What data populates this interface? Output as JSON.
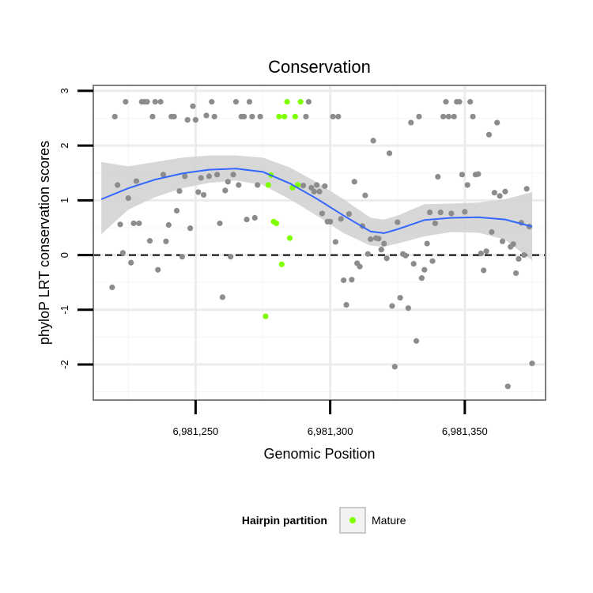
{
  "chart_data": {
    "type": "scatter",
    "title": "Conservation",
    "xlabel": "Genomic Position",
    "ylabel": "phyloP LRT conservation scores",
    "xlim": [
      6981212,
      6981380
    ],
    "ylim": [
      -2.65,
      3.1
    ],
    "x_ticks": [
      {
        "value": 6981250,
        "label": "6,981,250"
      },
      {
        "value": 6981300,
        "label": "6,981,300"
      },
      {
        "value": 6981350,
        "label": "6,981,350"
      }
    ],
    "y_ticks": [
      {
        "value": -2,
        "label": "-2"
      },
      {
        "value": -1,
        "label": "-1"
      },
      {
        "value": 0,
        "label": "0"
      },
      {
        "value": 1,
        "label": "1"
      },
      {
        "value": 2,
        "label": "2"
      },
      {
        "value": 3,
        "label": "3"
      }
    ],
    "reference_line": {
      "y": 0,
      "style": "dashed"
    },
    "grid": true,
    "legend": {
      "title": "Hairpin partition",
      "position": "bottom",
      "entries": [
        {
          "label": "Mature",
          "color": "#7fff00"
        }
      ]
    },
    "colors": {
      "points": "#8c8c8c",
      "mature": "#7fff00",
      "smooth": "#3366ff",
      "ribbon": "#d3d3d3"
    },
    "points": [
      [
        6981219,
        -0.59
      ],
      [
        6981220,
        2.53
      ],
      [
        6981221,
        1.28
      ],
      [
        6981222,
        0.56
      ],
      [
        6981223,
        0.04
      ],
      [
        6981224,
        2.8
      ],
      [
        6981225,
        1.04
      ],
      [
        6981226,
        -0.14
      ],
      [
        6981227,
        0.58
      ],
      [
        6981228,
        1.35
      ],
      [
        6981229,
        0.58
      ],
      [
        6981230,
        2.8
      ],
      [
        6981231,
        2.8
      ],
      [
        6981232,
        2.8
      ],
      [
        6981233,
        0.26
      ],
      [
        6981234,
        2.53
      ],
      [
        6981235,
        2.8
      ],
      [
        6981236,
        -0.27
      ],
      [
        6981237,
        2.8
      ],
      [
        6981238,
        1.47
      ],
      [
        6981239,
        0.25
      ],
      [
        6981240,
        0.55
      ],
      [
        6981241,
        2.53
      ],
      [
        6981242,
        2.53
      ],
      [
        6981243,
        0.81
      ],
      [
        6981244,
        1.17
      ],
      [
        6981245,
        -0.03
      ],
      [
        6981246,
        1.44
      ],
      [
        6981247,
        2.47
      ],
      [
        6981248,
        0.49
      ],
      [
        6981249,
        2.72
      ],
      [
        6981250,
        2.47
      ],
      [
        6981251,
        1.15
      ],
      [
        6981252,
        1.41
      ],
      [
        6981253,
        1.1
      ],
      [
        6981254,
        2.55
      ],
      [
        6981255,
        1.44
      ],
      [
        6981256,
        2.8
      ],
      [
        6981257,
        2.53
      ],
      [
        6981258,
        1.47
      ],
      [
        6981259,
        0.58
      ],
      [
        6981260,
        -0.77
      ],
      [
        6981261,
        1.18
      ],
      [
        6981262,
        1.34
      ],
      [
        6981263,
        -0.03
      ],
      [
        6981264,
        1.47
      ],
      [
        6981265,
        2.8
      ],
      [
        6981266,
        1.28
      ],
      [
        6981267,
        2.53
      ],
      [
        6981268,
        2.53
      ],
      [
        6981269,
        0.65
      ],
      [
        6981270,
        2.8
      ],
      [
        6981271,
        2.53
      ],
      [
        6981272,
        0.68
      ],
      [
        6981273,
        1.28
      ],
      [
        6981274,
        2.53
      ],
      [
        6981300,
        0.61
      ],
      [
        6981301,
        2.53
      ],
      [
        6981302,
        0.24
      ],
      [
        6981303,
        2.53
      ],
      [
        6981304,
        0.66
      ],
      [
        6981305,
        -0.46
      ],
      [
        6981306,
        -0.91
      ],
      [
        6981307,
        0.75
      ],
      [
        6981308,
        -0.45
      ],
      [
        6981309,
        1.34
      ],
      [
        6981310,
        -0.15
      ],
      [
        6981311,
        -0.21
      ],
      [
        6981312,
        0.53
      ],
      [
        6981313,
        1.09
      ],
      [
        6981314,
        0.02
      ],
      [
        6981315,
        0.29
      ],
      [
        6981316,
        2.09
      ],
      [
        6981317,
        0.31
      ],
      [
        6981318,
        0.3
      ],
      [
        6981319,
        0.1
      ],
      [
        6981320,
        0.21
      ],
      [
        6981321,
        -0.06
      ],
      [
        6981322,
        1.86
      ],
      [
        6981323,
        -0.93
      ],
      [
        6981324,
        -2.04
      ],
      [
        6981325,
        0.6
      ],
      [
        6981326,
        -0.78
      ],
      [
        6981327,
        0.02
      ],
      [
        6981328,
        -0.01
      ],
      [
        6981329,
        -0.97
      ],
      [
        6981330,
        2.42
      ],
      [
        6981331,
        -0.16
      ],
      [
        6981332,
        -1.57
      ],
      [
        6981333,
        2.53
      ],
      [
        6981334,
        -0.42
      ],
      [
        6981335,
        -0.27
      ],
      [
        6981336,
        0.21
      ],
      [
        6981337,
        0.78
      ],
      [
        6981338,
        -0.11
      ],
      [
        6981339,
        0.58
      ],
      [
        6981340,
        1.43
      ],
      [
        6981341,
        0.78
      ],
      [
        6981342,
        2.53
      ],
      [
        6981343,
        2.8
      ],
      [
        6981344,
        2.53
      ],
      [
        6981345,
        0.76
      ],
      [
        6981346,
        2.53
      ],
      [
        6981347,
        2.8
      ],
      [
        6981348,
        2.8
      ],
      [
        6981349,
        1.47
      ],
      [
        6981350,
        0.79
      ],
      [
        6981351,
        1.28
      ],
      [
        6981352,
        2.8
      ],
      [
        6981353,
        2.53
      ],
      [
        6981354,
        1.47
      ],
      [
        6981355,
        1.48
      ],
      [
        6981356,
        0.03
      ],
      [
        6981357,
        -0.28
      ],
      [
        6981358,
        0.07
      ],
      [
        6981359,
        2.2
      ],
      [
        6981360,
        0.42
      ],
      [
        6981361,
        1.14
      ],
      [
        6981362,
        2.42
      ],
      [
        6981363,
        1.08
      ],
      [
        6981364,
        0.25
      ],
      [
        6981365,
        1.16
      ],
      [
        6981366,
        -2.4
      ],
      [
        6981367,
        0.15
      ],
      [
        6981368,
        0.2
      ],
      [
        6981369,
        -0.33
      ],
      [
        6981370,
        -0.07
      ],
      [
        6981371,
        0.59
      ],
      [
        6981372,
        0.0
      ],
      [
        6981373,
        1.21
      ],
      [
        6981374,
        0.52
      ],
      [
        6981375,
        -1.98
      ]
    ],
    "mature_points": [
      [
        6981276,
        -1.12
      ],
      [
        6981277,
        1.28
      ],
      [
        6981278,
        1.46
      ],
      [
        6981279,
        0.61
      ],
      [
        6981280,
        0.58
      ],
      [
        6981281,
        2.53
      ],
      [
        6981282,
        -0.17
      ],
      [
        6981283,
        2.53
      ],
      [
        6981284,
        2.8
      ],
      [
        6981285,
        0.31
      ],
      [
        6981286,
        1.23
      ],
      [
        6981287,
        2.53
      ],
      [
        6981288,
        1.28
      ],
      [
        6981289,
        2.8
      ]
    ],
    "points_late": [
      [
        6981290,
        1.27
      ],
      [
        6981291,
        2.53
      ],
      [
        6981292,
        2.8
      ],
      [
        6981293,
        1.23
      ],
      [
        6981294,
        1.16
      ],
      [
        6981295,
        1.28
      ],
      [
        6981296,
        1.16
      ],
      [
        6981297,
        0.76
      ],
      [
        6981298,
        1.26
      ],
      [
        6981299,
        0.61
      ]
    ],
    "smooth": {
      "x": [
        6981215,
        6981225,
        6981235,
        6981245,
        6981255,
        6981265,
        6981275,
        6981285,
        6981295,
        6981305,
        6981315,
        6981320,
        6981325,
        6981335,
        6981345,
        6981355,
        6981365,
        6981375
      ],
      "y": [
        1.02,
        1.22,
        1.38,
        1.49,
        1.56,
        1.58,
        1.52,
        1.31,
        1.03,
        0.72,
        0.43,
        0.4,
        0.47,
        0.64,
        0.68,
        0.69,
        0.65,
        0.52
      ],
      "lower": [
        0.38,
        0.83,
        1.06,
        1.22,
        1.32,
        1.36,
        1.28,
        1.02,
        0.72,
        0.4,
        0.17,
        0.15,
        0.21,
        0.34,
        0.42,
        0.41,
        0.28,
        -0.1
      ],
      "upper": [
        1.7,
        1.62,
        1.7,
        1.78,
        1.82,
        1.82,
        1.78,
        1.6,
        1.33,
        1.02,
        0.68,
        0.65,
        0.72,
        0.93,
        0.94,
        0.96,
        1.02,
        1.15
      ]
    }
  }
}
